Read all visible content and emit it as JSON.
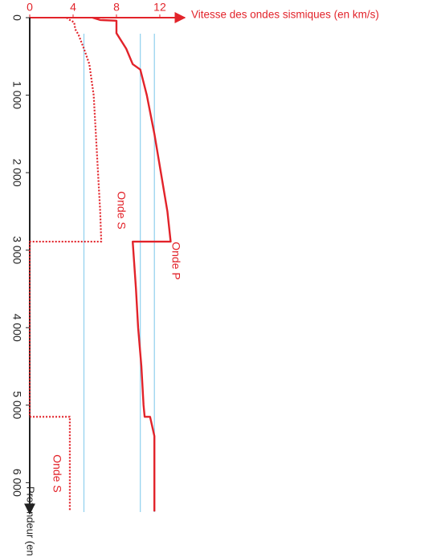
{
  "chart_data": {
    "type": "line",
    "title": "Vitesse des ondes sismiques (en km/s)",
    "y_label": "Profondeur (en km)",
    "xlim": [
      0,
      14.3
    ],
    "xticks": [
      0,
      4,
      8,
      12
    ],
    "ylim": [
      0,
      6400
    ],
    "yticks": [
      0,
      {
        "value": 1000,
        "label": "1 000"
      },
      {
        "value": 2000,
        "label": "2 000"
      },
      {
        "value": 3000,
        "label": "3 000"
      },
      {
        "value": 4000,
        "label": "4 000"
      },
      {
        "value": 5000,
        "label": "5 000"
      },
      {
        "value": 6000,
        "label": "6 000"
      }
    ],
    "reference_lines": [
      5,
      10.2,
      11.5
    ],
    "reference_color": "#8fd0ee",
    "series": [
      {
        "name": "Onde P",
        "color": "#e2232a",
        "dashed": false,
        "depth": [
          0,
          30,
          40,
          200,
          400,
          600,
          670,
          1000,
          1500,
          2000,
          2500,
          2890,
          2890,
          3500,
          4000,
          4500,
          5000,
          5150,
          5150,
          5400,
          6371
        ],
        "values": [
          5.8,
          6.5,
          8.0,
          8.0,
          8.9,
          9.5,
          10.2,
          10.8,
          11.5,
          12.1,
          12.7,
          13.0,
          9.5,
          9.8,
          10.0,
          10.3,
          10.5,
          10.6,
          11.1,
          11.5,
          11.5
        ]
      },
      {
        "name": "Onde S",
        "color": "#e2232a",
        "dashed": true,
        "depth": [
          0,
          30,
          60,
          150,
          220,
          400,
          600,
          1000,
          1500,
          2000,
          2500,
          2890,
          2890,
          5150,
          5150,
          6371
        ],
        "values": [
          3.4,
          3.7,
          4.1,
          4.2,
          4.5,
          5.0,
          5.5,
          5.9,
          6.1,
          6.3,
          6.5,
          6.6,
          0,
          0,
          3.7,
          3.7
        ]
      }
    ]
  }
}
